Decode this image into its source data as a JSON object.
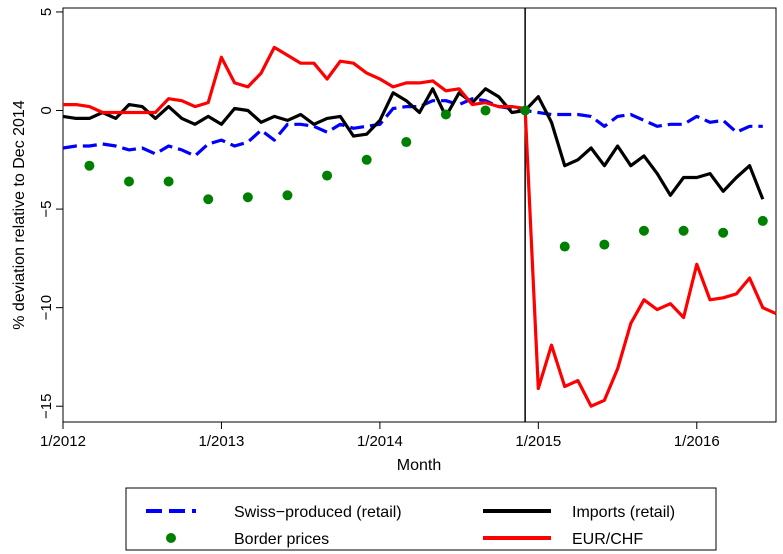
{
  "chart_data": {
    "type": "line",
    "xlabel": "Month",
    "ylabel": "% deviation relative to Dec 2014",
    "xlim": [
      "2012-01",
      "2016-07"
    ],
    "ylim": [
      -15.8,
      5.2
    ],
    "x_ticks": [
      {
        "date": "2012-01",
        "label": "1/2012"
      },
      {
        "date": "2013-01",
        "label": "1/2013"
      },
      {
        "date": "2014-01",
        "label": "1/2014"
      },
      {
        "date": "2015-01",
        "label": "1/2015"
      },
      {
        "date": "2016-01",
        "label": "1/2016"
      }
    ],
    "y_ticks": [
      5,
      0,
      -5,
      -10,
      -15
    ],
    "vline": "2014-12",
    "grid": false,
    "legend_position": "bottom",
    "series": [
      {
        "name": "Swiss−produced (retail)",
        "style": "dashed",
        "color": "#0000ff",
        "x": [
          "2012-01",
          "2012-02",
          "2012-03",
          "2012-04",
          "2012-05",
          "2012-06",
          "2012-07",
          "2012-08",
          "2012-09",
          "2012-10",
          "2012-11",
          "2012-12",
          "2013-01",
          "2013-02",
          "2013-03",
          "2013-04",
          "2013-05",
          "2013-06",
          "2013-07",
          "2013-08",
          "2013-09",
          "2013-10",
          "2013-11",
          "2013-12",
          "2014-01",
          "2014-02",
          "2014-03",
          "2014-04",
          "2014-05",
          "2014-06",
          "2014-07",
          "2014-08",
          "2014-09",
          "2014-10",
          "2014-11",
          "2014-12",
          "2015-01",
          "2015-02",
          "2015-03",
          "2015-04",
          "2015-05",
          "2015-06",
          "2015-07",
          "2015-08",
          "2015-09",
          "2015-10",
          "2015-11",
          "2015-12",
          "2016-01",
          "2016-02",
          "2016-03",
          "2016-04",
          "2016-05",
          "2016-06"
        ],
        "values": [
          -1.9,
          -1.8,
          -1.8,
          -1.7,
          -1.8,
          -2.0,
          -1.9,
          -2.2,
          -1.8,
          -2.0,
          -2.3,
          -1.7,
          -1.5,
          -1.8,
          -1.6,
          -1.0,
          -1.5,
          -0.7,
          -0.7,
          -0.8,
          -1.1,
          -0.7,
          -0.9,
          -0.8,
          -0.7,
          0.1,
          0.2,
          0.2,
          0.5,
          0.5,
          0.3,
          0.6,
          0.5,
          0.2,
          0.1,
          0.0,
          -0.1,
          -0.2,
          -0.2,
          -0.2,
          -0.3,
          -0.8,
          -0.3,
          -0.2,
          -0.5,
          -0.8,
          -0.7,
          -0.7,
          -0.3,
          -0.6,
          -0.5,
          -1.1,
          -0.8,
          -0.8
        ]
      },
      {
        "name": "Imports (retail)",
        "style": "solid",
        "color": "#000000",
        "x": [
          "2012-01",
          "2012-02",
          "2012-03",
          "2012-04",
          "2012-05",
          "2012-06",
          "2012-07",
          "2012-08",
          "2012-09",
          "2012-10",
          "2012-11",
          "2012-12",
          "2013-01",
          "2013-02",
          "2013-03",
          "2013-04",
          "2013-05",
          "2013-06",
          "2013-07",
          "2013-08",
          "2013-09",
          "2013-10",
          "2013-11",
          "2013-12",
          "2014-01",
          "2014-02",
          "2014-03",
          "2014-04",
          "2014-05",
          "2014-06",
          "2014-07",
          "2014-08",
          "2014-09",
          "2014-10",
          "2014-11",
          "2014-12",
          "2015-01",
          "2015-02",
          "2015-03",
          "2015-04",
          "2015-05",
          "2015-06",
          "2015-07",
          "2015-08",
          "2015-09",
          "2015-10",
          "2015-11",
          "2015-12",
          "2016-01",
          "2016-02",
          "2016-03",
          "2016-04",
          "2016-05",
          "2016-06"
        ],
        "values": [
          -0.3,
          -0.4,
          -0.4,
          -0.1,
          -0.4,
          0.3,
          0.2,
          -0.4,
          0.2,
          -0.4,
          -0.7,
          -0.3,
          -0.7,
          0.1,
          0.0,
          -0.6,
          -0.3,
          -0.5,
          -0.2,
          -0.7,
          -0.4,
          -0.3,
          -1.3,
          -1.2,
          -0.5,
          0.9,
          0.5,
          -0.1,
          1.1,
          -0.3,
          0.9,
          0.4,
          1.1,
          0.7,
          -0.1,
          0.0,
          0.7,
          -0.6,
          -2.8,
          -2.5,
          -1.9,
          -2.8,
          -1.8,
          -2.8,
          -2.3,
          -3.2,
          -4.3,
          -3.4,
          -3.4,
          -3.2,
          -4.1,
          -3.4,
          -2.8,
          -4.5
        ]
      },
      {
        "name": "Border prices",
        "style": "dots",
        "color": "#008000",
        "x": [
          "2012-03",
          "2012-06",
          "2012-09",
          "2012-12",
          "2013-03",
          "2013-06",
          "2013-09",
          "2013-12",
          "2014-03",
          "2014-06",
          "2014-09",
          "2014-12",
          "2015-03",
          "2015-06",
          "2015-09",
          "2015-12",
          "2016-03",
          "2016-06"
        ],
        "values": [
          -2.8,
          -3.6,
          -3.6,
          -4.5,
          -4.4,
          -4.3,
          -3.3,
          -2.5,
          -1.6,
          -0.2,
          0.0,
          0.0,
          -6.9,
          -6.8,
          -6.1,
          -6.1,
          -6.2,
          -5.6
        ]
      },
      {
        "name": "EUR/CHF",
        "style": "solid",
        "color": "#ff0000",
        "x": [
          "2012-01",
          "2012-02",
          "2012-03",
          "2012-04",
          "2012-05",
          "2012-06",
          "2012-07",
          "2012-08",
          "2012-09",
          "2012-10",
          "2012-11",
          "2012-12",
          "2013-01",
          "2013-02",
          "2013-03",
          "2013-04",
          "2013-05",
          "2013-06",
          "2013-07",
          "2013-08",
          "2013-09",
          "2013-10",
          "2013-11",
          "2013-12",
          "2014-01",
          "2014-02",
          "2014-03",
          "2014-04",
          "2014-05",
          "2014-06",
          "2014-07",
          "2014-08",
          "2014-09",
          "2014-10",
          "2014-11",
          "2014-12",
          "2015-01",
          "2015-02",
          "2015-03",
          "2015-04",
          "2015-05",
          "2015-06",
          "2015-07",
          "2015-08",
          "2015-09",
          "2015-10",
          "2015-11",
          "2015-12",
          "2016-01",
          "2016-02",
          "2016-03",
          "2016-04",
          "2016-05",
          "2016-06",
          "2016-07"
        ],
        "values": [
          0.3,
          0.3,
          0.2,
          -0.1,
          -0.1,
          -0.1,
          -0.1,
          -0.1,
          0.6,
          0.5,
          0.2,
          0.4,
          2.7,
          1.4,
          1.2,
          1.9,
          3.2,
          2.8,
          2.4,
          2.4,
          1.6,
          2.5,
          2.4,
          1.9,
          1.6,
          1.2,
          1.4,
          1.4,
          1.5,
          1.0,
          1.1,
          0.3,
          0.4,
          0.2,
          0.2,
          0.1,
          -14.1,
          -11.9,
          -14.0,
          -13.7,
          -15.0,
          -14.7,
          -13.1,
          -10.8,
          -9.6,
          -10.1,
          -9.8,
          -10.5,
          -7.8,
          -9.6,
          -9.5,
          -9.3,
          -8.5,
          -10.0,
          -10.3
        ]
      }
    ]
  }
}
